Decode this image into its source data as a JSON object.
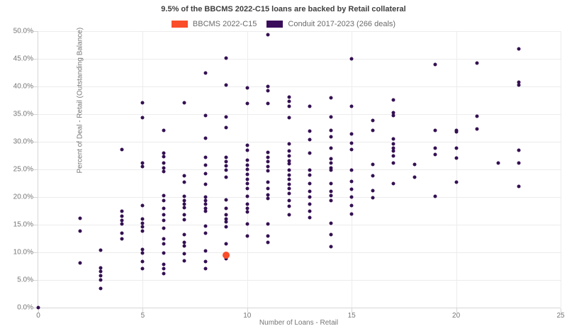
{
  "title": "9.5% of the BBCMS 2022-C15 loans are backed by Retail collateral",
  "legend": [
    {
      "label": "BBCMS 2022-C15",
      "color": "#fa4d2a"
    },
    {
      "label": "Conduit 2017-2023 (266 deals)",
      "color": "#3a0d5a"
    }
  ],
  "chart_data": {
    "type": "scatter",
    "title": "9.5% of the BBCMS 2022-C15 loans are backed by Retail collateral",
    "xlabel": "Number of Loans - Retail",
    "ylabel": "Percent of Deal - Retail (Outstanding Balance)",
    "xlim": [
      0,
      25
    ],
    "ylim": [
      0,
      50
    ],
    "grid": true,
    "legend_position": "top",
    "x_ticks": [
      0,
      5,
      10,
      15,
      20,
      25
    ],
    "x_tick_labels": [
      "0",
      "5",
      "10",
      "15",
      "20",
      "25"
    ],
    "y_ticks": [
      0,
      5,
      10,
      15,
      20,
      25,
      30,
      35,
      40,
      45,
      50
    ],
    "y_tick_labels": [
      "0.0%",
      "5.0%",
      "10.0%",
      "15.0%",
      "20.0%",
      "25.0%",
      "30.0%",
      "35.0%",
      "40.0%",
      "45.0%",
      "50.0%"
    ],
    "series": [
      {
        "name": "Conduit 2017-2023 (266 deals)",
        "color": "#341052",
        "marker_size": 5,
        "z": 2,
        "points": [
          [
            0,
            0.0
          ],
          [
            2,
            16.1
          ],
          [
            2,
            13.9
          ],
          [
            2,
            8.1
          ],
          [
            3,
            10.4
          ],
          [
            3,
            7.2
          ],
          [
            3,
            6.5
          ],
          [
            3,
            5.8
          ],
          [
            3,
            5.0
          ],
          [
            3,
            3.5
          ],
          [
            4,
            28.6
          ],
          [
            4,
            17.5
          ],
          [
            4,
            16.6
          ],
          [
            4,
            15.8
          ],
          [
            4,
            15.1
          ],
          [
            4,
            13.4
          ],
          [
            4,
            12.4
          ],
          [
            5,
            37.0
          ],
          [
            5,
            34.4
          ],
          [
            5,
            26.2
          ],
          [
            5,
            25.5
          ],
          [
            5,
            18.4
          ],
          [
            5,
            16.0
          ],
          [
            5,
            15.3
          ],
          [
            5,
            14.6
          ],
          [
            5,
            13.8
          ],
          [
            5,
            10.5
          ],
          [
            5,
            9.9
          ],
          [
            5,
            8.3
          ],
          [
            5,
            7.0
          ],
          [
            6,
            32.0
          ],
          [
            6,
            28.0
          ],
          [
            6,
            27.3
          ],
          [
            6,
            26.1
          ],
          [
            6,
            25.3
          ],
          [
            6,
            24.6
          ],
          [
            6,
            20.2
          ],
          [
            6,
            19.4
          ],
          [
            6,
            17.9
          ],
          [
            6,
            16.8
          ],
          [
            6,
            15.8
          ],
          [
            6,
            14.3
          ],
          [
            6,
            12.5
          ],
          [
            6,
            11.5
          ],
          [
            6,
            9.9
          ],
          [
            6,
            7.8
          ],
          [
            6,
            7.0
          ],
          [
            6,
            6.2
          ],
          [
            7,
            37.0
          ],
          [
            7,
            23.9
          ],
          [
            7,
            22.7
          ],
          [
            7,
            20.1
          ],
          [
            7,
            19.4
          ],
          [
            7,
            18.7
          ],
          [
            7,
            18.1
          ],
          [
            7,
            16.8
          ],
          [
            7,
            15.9
          ],
          [
            7,
            13.2
          ],
          [
            7,
            11.8
          ],
          [
            7,
            11.2
          ],
          [
            7,
            9.8
          ],
          [
            7,
            8.5
          ],
          [
            8,
            42.5
          ],
          [
            8,
            34.8
          ],
          [
            8,
            30.7
          ],
          [
            8,
            27.2
          ],
          [
            8,
            25.8
          ],
          [
            8,
            24.2
          ],
          [
            8,
            22.3
          ],
          [
            8,
            20.0
          ],
          [
            8,
            19.3
          ],
          [
            8,
            18.7
          ],
          [
            8,
            18.0
          ],
          [
            8,
            17.4
          ],
          [
            8,
            14.7
          ],
          [
            8,
            13.4
          ],
          [
            8,
            10.2
          ],
          [
            8,
            8.3
          ],
          [
            8,
            7.0
          ],
          [
            9,
            45.1
          ],
          [
            9,
            40.2
          ],
          [
            9,
            34.5
          ],
          [
            9,
            32.6
          ],
          [
            9,
            27.2
          ],
          [
            9,
            26.4
          ],
          [
            9,
            25.7
          ],
          [
            9,
            24.9
          ],
          [
            9,
            23.6
          ],
          [
            9,
            19.5
          ],
          [
            9,
            17.9
          ],
          [
            9,
            16.8
          ],
          [
            9,
            16.0
          ],
          [
            9,
            15.5
          ],
          [
            9,
            14.6
          ],
          [
            9,
            11.5
          ],
          [
            9,
            8.8
          ],
          [
            10,
            39.8
          ],
          [
            10,
            36.9
          ],
          [
            10,
            29.4
          ],
          [
            10,
            28.5
          ],
          [
            10,
            26.7
          ],
          [
            10,
            25.8
          ],
          [
            10,
            25.0
          ],
          [
            10,
            24.1
          ],
          [
            10,
            23.2
          ],
          [
            10,
            22.4
          ],
          [
            10,
            21.5
          ],
          [
            10,
            20.1
          ],
          [
            10,
            18.7
          ],
          [
            10,
            17.9
          ],
          [
            10,
            17.3
          ],
          [
            10,
            15.1
          ],
          [
            10,
            13.0
          ],
          [
            11,
            49.3
          ],
          [
            11,
            40.0
          ],
          [
            11,
            39.2
          ],
          [
            11,
            36.9
          ],
          [
            11,
            28.1
          ],
          [
            11,
            27.2
          ],
          [
            11,
            26.4
          ],
          [
            11,
            25.5
          ],
          [
            11,
            24.7
          ],
          [
            11,
            22.7
          ],
          [
            11,
            21.5
          ],
          [
            11,
            20.4
          ],
          [
            11,
            19.7
          ],
          [
            11,
            15.1
          ],
          [
            11,
            13.0
          ],
          [
            11,
            11.8
          ],
          [
            12,
            38.1
          ],
          [
            12,
            37.3
          ],
          [
            12,
            36.4
          ],
          [
            12,
            34.4
          ],
          [
            12,
            29.6
          ],
          [
            12,
            28.3
          ],
          [
            12,
            27.4
          ],
          [
            12,
            26.6
          ],
          [
            12,
            26.0
          ],
          [
            12,
            24.9
          ],
          [
            12,
            24.0
          ],
          [
            12,
            23.2
          ],
          [
            12,
            22.3
          ],
          [
            12,
            21.5
          ],
          [
            12,
            20.6
          ],
          [
            12,
            19.3
          ],
          [
            12,
            18.3
          ],
          [
            12,
            16.8
          ],
          [
            13,
            36.4
          ],
          [
            13,
            31.9
          ],
          [
            13,
            30.4
          ],
          [
            13,
            27.9
          ],
          [
            13,
            24.9
          ],
          [
            13,
            24.0
          ],
          [
            13,
            22.5
          ],
          [
            13,
            21.0
          ],
          [
            13,
            20.0
          ],
          [
            13,
            18.7
          ],
          [
            13,
            17.4
          ],
          [
            13,
            16.3
          ],
          [
            14,
            38.0
          ],
          [
            14,
            34.5
          ],
          [
            14,
            32.0
          ],
          [
            14,
            30.9
          ],
          [
            14,
            28.9
          ],
          [
            14,
            26.9
          ],
          [
            14,
            26.1
          ],
          [
            14,
            25.2
          ],
          [
            14,
            24.9
          ],
          [
            14,
            22.5
          ],
          [
            14,
            21.0
          ],
          [
            14,
            20.2
          ],
          [
            14,
            19.3
          ],
          [
            14,
            15.3
          ],
          [
            14,
            13.2
          ],
          [
            14,
            11.0
          ],
          [
            15,
            45.0
          ],
          [
            15,
            36.4
          ],
          [
            15,
            31.4
          ],
          [
            15,
            29.7
          ],
          [
            15,
            28.6
          ],
          [
            15,
            24.9
          ],
          [
            15,
            22.8
          ],
          [
            15,
            21.4
          ],
          [
            15,
            20.0
          ],
          [
            15,
            18.4
          ],
          [
            15,
            16.9
          ],
          [
            16,
            33.8
          ],
          [
            16,
            32.0
          ],
          [
            16,
            25.9
          ],
          [
            16,
            23.8
          ],
          [
            16,
            21.1
          ],
          [
            16,
            19.9
          ],
          [
            17,
            37.6
          ],
          [
            17,
            35.2
          ],
          [
            17,
            34.8
          ],
          [
            17,
            30.5
          ],
          [
            17,
            29.6
          ],
          [
            17,
            28.9
          ],
          [
            17,
            28.3
          ],
          [
            17,
            27.4
          ],
          [
            17,
            26.1
          ],
          [
            17,
            22.4
          ],
          [
            18,
            25.9
          ],
          [
            18,
            23.6
          ],
          [
            19,
            44.0
          ],
          [
            19,
            32.0
          ],
          [
            19,
            28.9
          ],
          [
            19,
            27.7
          ],
          [
            19,
            20.1
          ],
          [
            20,
            32.1
          ],
          [
            20,
            31.8
          ],
          [
            20,
            28.9
          ],
          [
            20,
            27.0
          ],
          [
            20,
            22.7
          ],
          [
            21,
            44.2
          ],
          [
            21,
            34.6
          ],
          [
            21,
            32.3
          ],
          [
            22,
            26.2
          ],
          [
            23,
            46.8
          ],
          [
            23,
            40.8
          ],
          [
            23,
            40.3
          ],
          [
            23,
            28.4
          ],
          [
            23,
            26.2
          ],
          [
            23,
            21.9
          ]
        ]
      },
      {
        "name": "BBCMS 2022-C15",
        "color": "#fa4d2a",
        "marker_size": 10,
        "z": 3,
        "points": [
          [
            9,
            9.5
          ]
        ]
      }
    ]
  }
}
